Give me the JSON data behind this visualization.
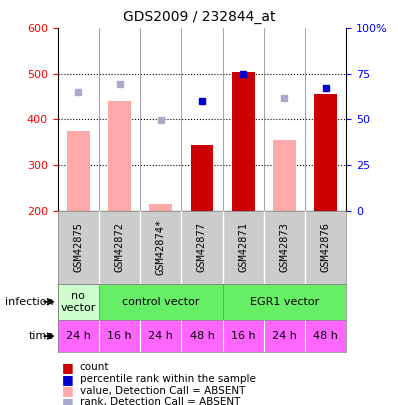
{
  "title": "GDS2009 / 232844_at",
  "samples": [
    "GSM42875",
    "GSM42872",
    "GSM42874*",
    "GSM42877",
    "GSM42871",
    "GSM42873",
    "GSM42876"
  ],
  "count_values": [
    null,
    null,
    null,
    345,
    505,
    null,
    455
  ],
  "count_absent_values": [
    375,
    440,
    215,
    null,
    null,
    355,
    null
  ],
  "rank_absent_values": [
    460,
    477,
    398,
    null,
    null,
    447,
    null
  ],
  "rank_values": [
    null,
    null,
    null,
    440,
    500,
    null,
    468
  ],
  "infection_groups": [
    {
      "label": "no\nvector",
      "start": 0,
      "end": 1,
      "color": "#ccffcc"
    },
    {
      "label": "control vector",
      "start": 1,
      "end": 4,
      "color": "#66ee66"
    },
    {
      "label": "EGR1 vector",
      "start": 4,
      "end": 7,
      "color": "#66ee66"
    }
  ],
  "time_labels": [
    "24 h",
    "16 h",
    "24 h",
    "48 h",
    "16 h",
    "24 h",
    "48 h"
  ],
  "time_color": "#ff66ff",
  "ylim_left": [
    200,
    600
  ],
  "ylim_right": [
    0,
    100
  ],
  "yticks_left": [
    200,
    300,
    400,
    500,
    600
  ],
  "yticks_right": [
    0,
    25,
    50,
    75,
    100
  ],
  "ytick_right_labels": [
    "0",
    "25",
    "50",
    "75",
    "100%"
  ],
  "grid_values": [
    300,
    400,
    500
  ],
  "bar_color_present": "#cc0000",
  "bar_color_absent": "#ffaaaa",
  "dot_color_present": "#0000cc",
  "dot_color_absent": "#aaaacc",
  "sample_bg_color": "#cccccc",
  "legend_items": [
    {
      "color": "#cc0000",
      "label": "count"
    },
    {
      "color": "#0000cc",
      "label": "percentile rank within the sample"
    },
    {
      "color": "#ffaaaa",
      "label": "value, Detection Call = ABSENT"
    },
    {
      "color": "#aaaacc",
      "label": "rank, Detection Call = ABSENT"
    }
  ]
}
